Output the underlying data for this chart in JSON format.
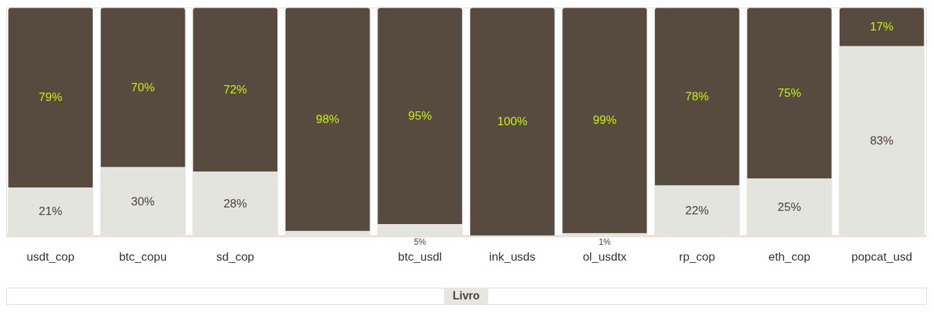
{
  "chart_data": {
    "type": "bar",
    "stacked": true,
    "categories": [
      "usdt_cop",
      "btc_copu",
      "sd_cop",
      null,
      "btc_usdl",
      "ink_usds",
      "ol_usdtx",
      "rp_cop",
      "eth_cop",
      "popcat_usd"
    ],
    "series": [
      {
        "color": "#e4e4de",
        "values": [
          21,
          30,
          28,
          2,
          5,
          0,
          1,
          22,
          25,
          83
        ],
        "value_labels": [
          "21%",
          "30%",
          "28%",
          null,
          "5%",
          null,
          "1%",
          "22%",
          "25%",
          "83%"
        ]
      },
      {
        "color": "#574a3f",
        "values": [
          79,
          70,
          72,
          98,
          95,
          100,
          99,
          78,
          75,
          17
        ],
        "value_labels": [
          "79%",
          "70%",
          "72%",
          "98%",
          "95%",
          "100%",
          "99%",
          "78%",
          "75%",
          "17%"
        ]
      }
    ],
    "annotations": [
      "Livro"
    ]
  }
}
